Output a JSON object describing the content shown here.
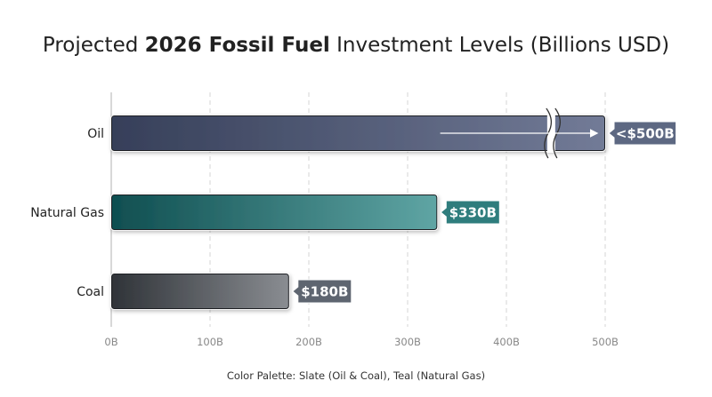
{
  "chart_data": {
    "type": "bar",
    "orientation": "horizontal",
    "title": {
      "prefix": "Projected ",
      "bold": "2026 Fossil Fuel",
      "suffix": " Investment Levels (Billions USD)"
    },
    "categories": [
      "Oil",
      "Natural Gas",
      "Coal"
    ],
    "values": [
      500,
      330,
      180
    ],
    "value_labels": [
      "<$500B",
      "$330B",
      "$180B"
    ],
    "xlim": [
      0,
      500
    ],
    "x_ticks": [
      0,
      100,
      200,
      300,
      400,
      500
    ],
    "x_tick_labels": [
      "0B",
      "100B",
      "200B",
      "300B",
      "400B",
      "500B"
    ],
    "grid": true,
    "axis_break": "Oil bar broken near 450B",
    "colors": {
      "Oil": [
        "#363f59",
        "#727b97"
      ],
      "Natural Gas": [
        "#0f4e50",
        "#5fa5a4"
      ],
      "Coal": [
        "#2f3338",
        "#8a8d92"
      ],
      "Oil_label": "#5d6882",
      "Natural Gas_label": "#2f7d7d",
      "Coal_label": "#5e6570"
    }
  },
  "footnote": "Color Palette: Slate (Oil & Coal), Teal (Natural Gas)"
}
